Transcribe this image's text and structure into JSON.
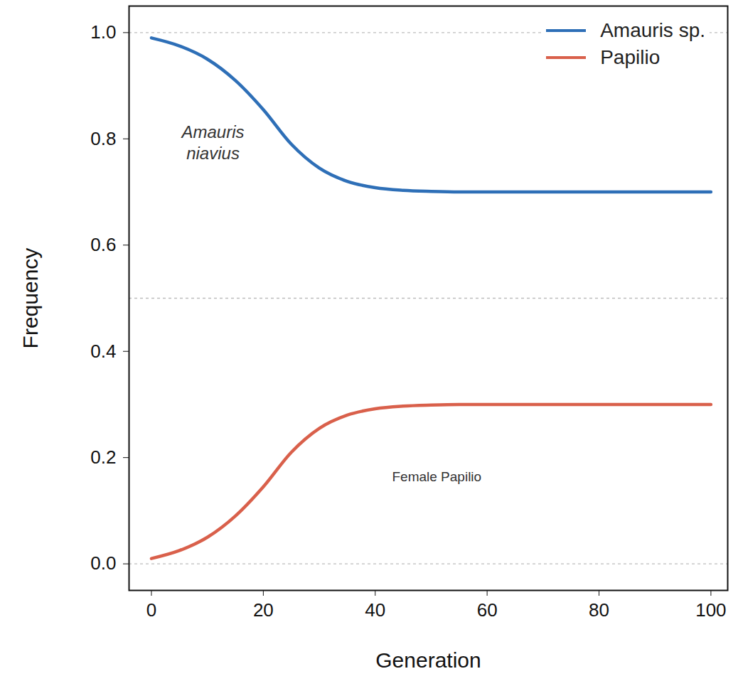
{
  "chart_data": {
    "type": "line",
    "x_label": "Generation",
    "y_label": "Frequency",
    "x": [
      0,
      5,
      10,
      15,
      20,
      25,
      30,
      35,
      40,
      45,
      50,
      55,
      60,
      70,
      80,
      90,
      100
    ],
    "series": [
      {
        "name": "Amauris sp.",
        "color": "#2e6fb7",
        "values": [
          0.99,
          0.975,
          0.95,
          0.91,
          0.855,
          0.79,
          0.745,
          0.72,
          0.708,
          0.703,
          0.701,
          0.7,
          0.7,
          0.7,
          0.7,
          0.7,
          0.7
        ]
      },
      {
        "name": "Papilio",
        "color": "#d9604b",
        "values": [
          0.01,
          0.025,
          0.05,
          0.09,
          0.145,
          0.21,
          0.255,
          0.28,
          0.292,
          0.297,
          0.299,
          0.3,
          0.3,
          0.3,
          0.3,
          0.3,
          0.3
        ]
      }
    ],
    "xlim": [
      -4,
      103
    ],
    "ylim": [
      -0.05,
      1.05
    ],
    "xticks": [
      0,
      20,
      40,
      60,
      80,
      100
    ],
    "yticks": [
      {
        "value": 0,
        "label": "0.0"
      },
      {
        "value": 0.2,
        "label": "0.2"
      },
      {
        "value": 0.4,
        "label": "0.4"
      },
      {
        "value": 0.6,
        "label": "0.6"
      },
      {
        "value": 0.8,
        "label": "0.8"
      },
      {
        "value": 1,
        "label": "1.0"
      }
    ],
    "reference_lines": [
      0,
      0.5,
      1
    ],
    "grid": false,
    "legend": "upper right",
    "annotations": [
      {
        "text": "Amauris niavius",
        "x": 11,
        "y": 0.795
      },
      {
        "text": "Female Papilio",
        "x": 51,
        "y": 0.165
      }
    ]
  }
}
